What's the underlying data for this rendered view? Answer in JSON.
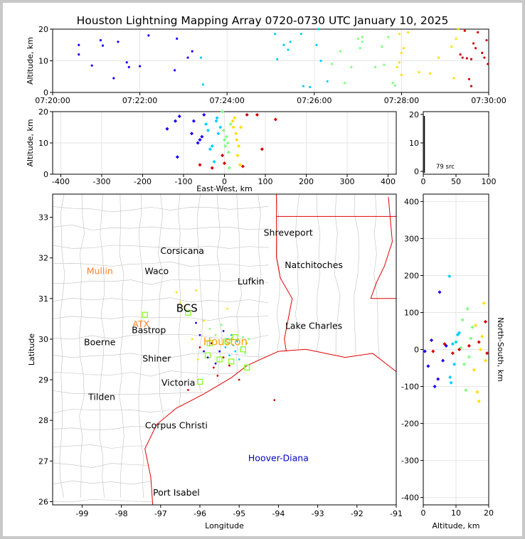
{
  "title": "Houston Lightning Mapping Array 0720-0730 UTC January 10, 2025",
  "colors": {
    "early": "#1a00ff",
    "mid1": "#00cfff",
    "mid2": "#7fff7f",
    "mid3": "#ffe000",
    "late": "#d40000",
    "coast": "#e00000",
    "county": "#c0c0c0",
    "station": "#88ff22"
  },
  "chart_data": [
    {
      "type": "scatter",
      "panel": "time-height",
      "ylabel": "Altitude, km",
      "ylim": [
        0,
        20
      ],
      "xticks": [
        "07:20:00",
        "07:22:00",
        "07:24:00",
        "07:26:00",
        "07:28:00",
        "07:30:00"
      ],
      "yticks": [
        "0",
        "10",
        "20"
      ],
      "xrange_min": [
        0,
        10
      ],
      "points": [
        [
          0.6,
          15
        ],
        [
          0.6,
          12
        ],
        [
          0.9,
          8.5
        ],
        [
          1.1,
          16.5
        ],
        [
          1.15,
          14.8
        ],
        [
          1.4,
          4.5
        ],
        [
          1.5,
          16
        ],
        [
          1.7,
          9.5
        ],
        [
          1.75,
          8
        ],
        [
          2.0,
          8.3
        ],
        [
          2.2,
          18
        ],
        [
          2.8,
          7
        ],
        [
          2.85,
          17
        ],
        [
          3.1,
          11
        ],
        [
          3.2,
          13
        ],
        [
          3.4,
          11
        ],
        [
          3.45,
          2.5
        ],
        [
          5.1,
          18.5
        ],
        [
          5.15,
          10.5
        ],
        [
          5.3,
          15
        ],
        [
          5.4,
          13.5
        ],
        [
          5.45,
          16
        ],
        [
          5.7,
          18.5
        ],
        [
          5.75,
          2
        ],
        [
          5.9,
          1.7
        ],
        [
          6.05,
          15
        ],
        [
          6.1,
          20
        ],
        [
          6.15,
          10
        ],
        [
          6.3,
          3.5
        ],
        [
          6.4,
          9
        ],
        [
          6.6,
          13
        ],
        [
          6.7,
          3
        ],
        [
          6.85,
          8
        ],
        [
          7.0,
          17
        ],
        [
          7.05,
          14
        ],
        [
          7.1,
          16
        ],
        [
          7.1,
          17.5
        ],
        [
          7.4,
          8
        ],
        [
          7.55,
          14.5
        ],
        [
          7.6,
          8.7
        ],
        [
          7.7,
          17.5
        ],
        [
          7.8,
          3
        ],
        [
          7.85,
          2.2
        ],
        [
          7.9,
          8
        ],
        [
          7.95,
          9.5
        ],
        [
          7.95,
          18.5
        ],
        [
          8.0,
          12.5
        ],
        [
          8.0,
          5.5
        ],
        [
          8.05,
          14
        ],
        [
          8.15,
          19
        ],
        [
          8.4,
          6.4
        ],
        [
          8.65,
          6
        ],
        [
          8.85,
          11
        ],
        [
          9.15,
          14.5
        ],
        [
          9.2,
          4.5
        ],
        [
          9.25,
          17
        ],
        [
          9.3,
          20
        ],
        [
          9.35,
          12
        ],
        [
          9.4,
          11
        ],
        [
          9.45,
          19.5
        ],
        [
          9.5,
          10.8
        ],
        [
          9.55,
          4.2
        ],
        [
          9.6,
          10.5
        ],
        [
          9.6,
          2
        ],
        [
          9.65,
          15.5
        ],
        [
          9.7,
          14
        ],
        [
          9.75,
          19
        ],
        [
          9.85,
          12.5
        ],
        [
          9.9,
          11
        ],
        [
          9.95,
          16.5
        ],
        [
          9.98,
          9
        ]
      ]
    },
    {
      "type": "scatter",
      "panel": "east-west-height",
      "xlabel": "East-West, km",
      "ylabel": "Altitude, km",
      "xlim": [
        -420,
        420
      ],
      "ylim": [
        0,
        20
      ],
      "xticks": [
        "-400",
        "-300",
        "-200",
        "-100",
        "0",
        "100",
        "200",
        "300",
        "400"
      ],
      "yticks": [
        "0",
        "10",
        "20"
      ],
      "points": [
        [
          -140,
          14.5
        ],
        [
          -120,
          17
        ],
        [
          -115,
          5.5
        ],
        [
          -110,
          18.5
        ],
        [
          -80,
          13
        ],
        [
          -75,
          17
        ],
        [
          -65,
          10
        ],
        [
          -60,
          11
        ],
        [
          -55,
          12
        ],
        [
          -50,
          19
        ],
        [
          -45,
          16
        ],
        [
          -40,
          14
        ],
        [
          -35,
          8
        ],
        [
          -30,
          9
        ],
        [
          -25,
          4
        ],
        [
          -20,
          17
        ],
        [
          -18,
          18
        ],
        [
          -15,
          13
        ],
        [
          -10,
          15
        ],
        [
          -5,
          20
        ],
        [
          -2,
          14
        ],
        [
          0,
          11
        ],
        [
          2,
          9
        ],
        [
          5,
          12
        ],
        [
          8,
          10
        ],
        [
          10,
          7
        ],
        [
          12,
          2
        ],
        [
          15,
          16
        ],
        [
          20,
          17
        ],
        [
          22,
          15
        ],
        [
          25,
          18
        ],
        [
          28,
          13
        ],
        [
          30,
          11
        ],
        [
          32,
          6
        ],
        [
          35,
          9
        ],
        [
          38,
          3
        ],
        [
          40,
          15
        ],
        [
          45,
          2.5
        ],
        [
          55,
          19
        ],
        [
          80,
          19
        ],
        [
          92,
          8
        ],
        [
          125,
          17.5
        ],
        [
          -60,
          3
        ],
        [
          -30,
          2
        ],
        [
          -5,
          6
        ],
        [
          0,
          3.5
        ]
      ]
    },
    {
      "type": "histogram",
      "panel": "source-count",
      "annotation": "79 src",
      "xticks": [
        "0",
        "50",
        "100"
      ],
      "yticks": [
        "0",
        "10",
        "20"
      ]
    },
    {
      "type": "map",
      "panel": "plan-view",
      "xlabel": "Longitude",
      "ylabel": "Latitude",
      "xticks": [
        "-99",
        "-98",
        "-97",
        "-96",
        "-95",
        "-94",
        "-93",
        "-92",
        "-91"
      ],
      "yticks": [
        "26",
        "27",
        "28",
        "29",
        "30",
        "31",
        "32",
        "33"
      ],
      "labels": [
        {
          "name": "Shreveport",
          "lon": -93.75,
          "lat": 32.55,
          "kind": "city"
        },
        {
          "name": "Corsicana",
          "lon": -96.45,
          "lat": 32.1,
          "kind": "city"
        },
        {
          "name": "Natchitoches",
          "lon": -93.1,
          "lat": 31.75,
          "kind": "city"
        },
        {
          "name": "Mullin",
          "lon": -98.55,
          "lat": 31.6,
          "kind": "station"
        },
        {
          "name": "Waco",
          "lon": -97.1,
          "lat": 31.6,
          "kind": "city"
        },
        {
          "name": "Lufkin",
          "lon": -94.7,
          "lat": 31.35,
          "kind": "city"
        },
        {
          "name": "BCS",
          "lon": -96.33,
          "lat": 30.67,
          "kind": "major"
        },
        {
          "name": "ATX",
          "lon": -97.5,
          "lat": 30.3,
          "kind": "station"
        },
        {
          "name": "Bastrop",
          "lon": -97.3,
          "lat": 30.15,
          "kind": "city"
        },
        {
          "name": "Lake Charles",
          "lon": -93.1,
          "lat": 30.25,
          "kind": "city"
        },
        {
          "name": "Houston",
          "lon": -95.35,
          "lat": 29.85,
          "kind": "houston"
        },
        {
          "name": "Boerne",
          "lon": -98.55,
          "lat": 29.85,
          "kind": "city"
        },
        {
          "name": "Shiner",
          "lon": -97.1,
          "lat": 29.45,
          "kind": "city"
        },
        {
          "name": "Victoria",
          "lon": -96.55,
          "lat": 28.85,
          "kind": "city"
        },
        {
          "name": "Tilden",
          "lon": -98.5,
          "lat": 28.5,
          "kind": "city"
        },
        {
          "name": "Corpus Christi",
          "lon": -96.6,
          "lat": 27.8,
          "kind": "city"
        },
        {
          "name": "Hoover-Diana",
          "lon": -94.0,
          "lat": 27.0,
          "kind": "offshore"
        },
        {
          "name": "Port Isabel",
          "lon": -96.6,
          "lat": 26.15,
          "kind": "city"
        }
      ],
      "stations": [
        [
          -97.4,
          30.6
        ],
        [
          -96.3,
          30.65
        ],
        [
          -95.75,
          29.9
        ],
        [
          -95.3,
          29.95
        ],
        [
          -95.8,
          29.6
        ],
        [
          -95.5,
          29.5
        ],
        [
          -95.2,
          29.45
        ],
        [
          -94.8,
          29.3
        ],
        [
          -94.9,
          29.75
        ],
        [
          -95.1,
          30.05
        ],
        [
          -96.0,
          28.95
        ]
      ],
      "points": [
        [
          -96.1,
          30.4
        ],
        [
          -96.0,
          30.1
        ],
        [
          -95.9,
          29.7
        ],
        [
          -95.8,
          29.55
        ],
        [
          -95.7,
          29.9
        ],
        [
          -95.6,
          29.4
        ],
        [
          -95.5,
          29.7
        ],
        [
          -95.4,
          30.2
        ],
        [
          -95.35,
          29.8
        ],
        [
          -95.3,
          30.0
        ],
        [
          -95.25,
          29.6
        ],
        [
          -95.2,
          30.1
        ],
        [
          -95.15,
          29.85
        ],
        [
          -95.1,
          29.7
        ],
        [
          -95.05,
          29.95
        ],
        [
          -95.0,
          29.5
        ],
        [
          -94.95,
          29.8
        ],
        [
          -94.9,
          30.05
        ],
        [
          -94.85,
          29.65
        ],
        [
          -94.8,
          29.9
        ],
        [
          -94.75,
          30.0
        ],
        [
          -95.45,
          30.35
        ],
        [
          -95.6,
          30.1
        ],
        [
          -95.75,
          30.25
        ],
        [
          -95.9,
          30.45
        ],
        [
          -96.05,
          29.5
        ],
        [
          -96.2,
          30.0
        ],
        [
          -96.4,
          30.8
        ],
        [
          -96.5,
          30.9
        ],
        [
          -96.6,
          31.15
        ],
        [
          -96.1,
          31.2
        ],
        [
          -95.3,
          30.75
        ],
        [
          -94.1,
          28.5
        ],
        [
          -96.3,
          28.75
        ],
        [
          -95.0,
          29.0
        ],
        [
          -95.55,
          29.1
        ],
        [
          -95.65,
          29.3
        ],
        [
          -95.25,
          29.35
        ],
        [
          -95.4,
          29.55
        ],
        [
          -96.0,
          29.8
        ]
      ]
    },
    {
      "type": "scatter",
      "panel": "ns-height",
      "xlabel": "Altitude, km",
      "ylabel": "North-South, km",
      "xlim": [
        0,
        20
      ],
      "ylim": [
        -420,
        420
      ],
      "xticks": [
        "0",
        "10",
        "20"
      ],
      "yticks": [
        "-400",
        "-300",
        "-200",
        "-100",
        "0",
        "100",
        "200",
        "300",
        "400"
      ],
      "points": [
        [
          0.5,
          -5
        ],
        [
          1.5,
          -45
        ],
        [
          2.5,
          25
        ],
        [
          3.5,
          -100
        ],
        [
          4.5,
          -80
        ],
        [
          5,
          155
        ],
        [
          6,
          -30
        ],
        [
          7,
          10
        ],
        [
          8,
          198
        ],
        [
          8.2,
          -75
        ],
        [
          8.5,
          -90
        ],
        [
          9,
          15
        ],
        [
          9.5,
          -40
        ],
        [
          10,
          20
        ],
        [
          10.5,
          40
        ],
        [
          11,
          45
        ],
        [
          11.5,
          5
        ],
        [
          12,
          80
        ],
        [
          12.5,
          -40
        ],
        [
          13,
          -110
        ],
        [
          13.5,
          110
        ],
        [
          14,
          -20
        ],
        [
          14.5,
          30
        ],
        [
          15,
          60
        ],
        [
          15.5,
          -55
        ],
        [
          16,
          65
        ],
        [
          16.5,
          -115
        ],
        [
          17,
          -140
        ],
        [
          17.5,
          0
        ],
        [
          18,
          35
        ],
        [
          18.5,
          125
        ],
        [
          19,
          -30
        ],
        [
          19,
          75
        ],
        [
          19.5,
          -10
        ],
        [
          3,
          -5
        ],
        [
          6.5,
          15
        ],
        [
          9,
          -10
        ],
        [
          11,
          0
        ],
        [
          14,
          10
        ],
        [
          17,
          20
        ]
      ]
    }
  ]
}
